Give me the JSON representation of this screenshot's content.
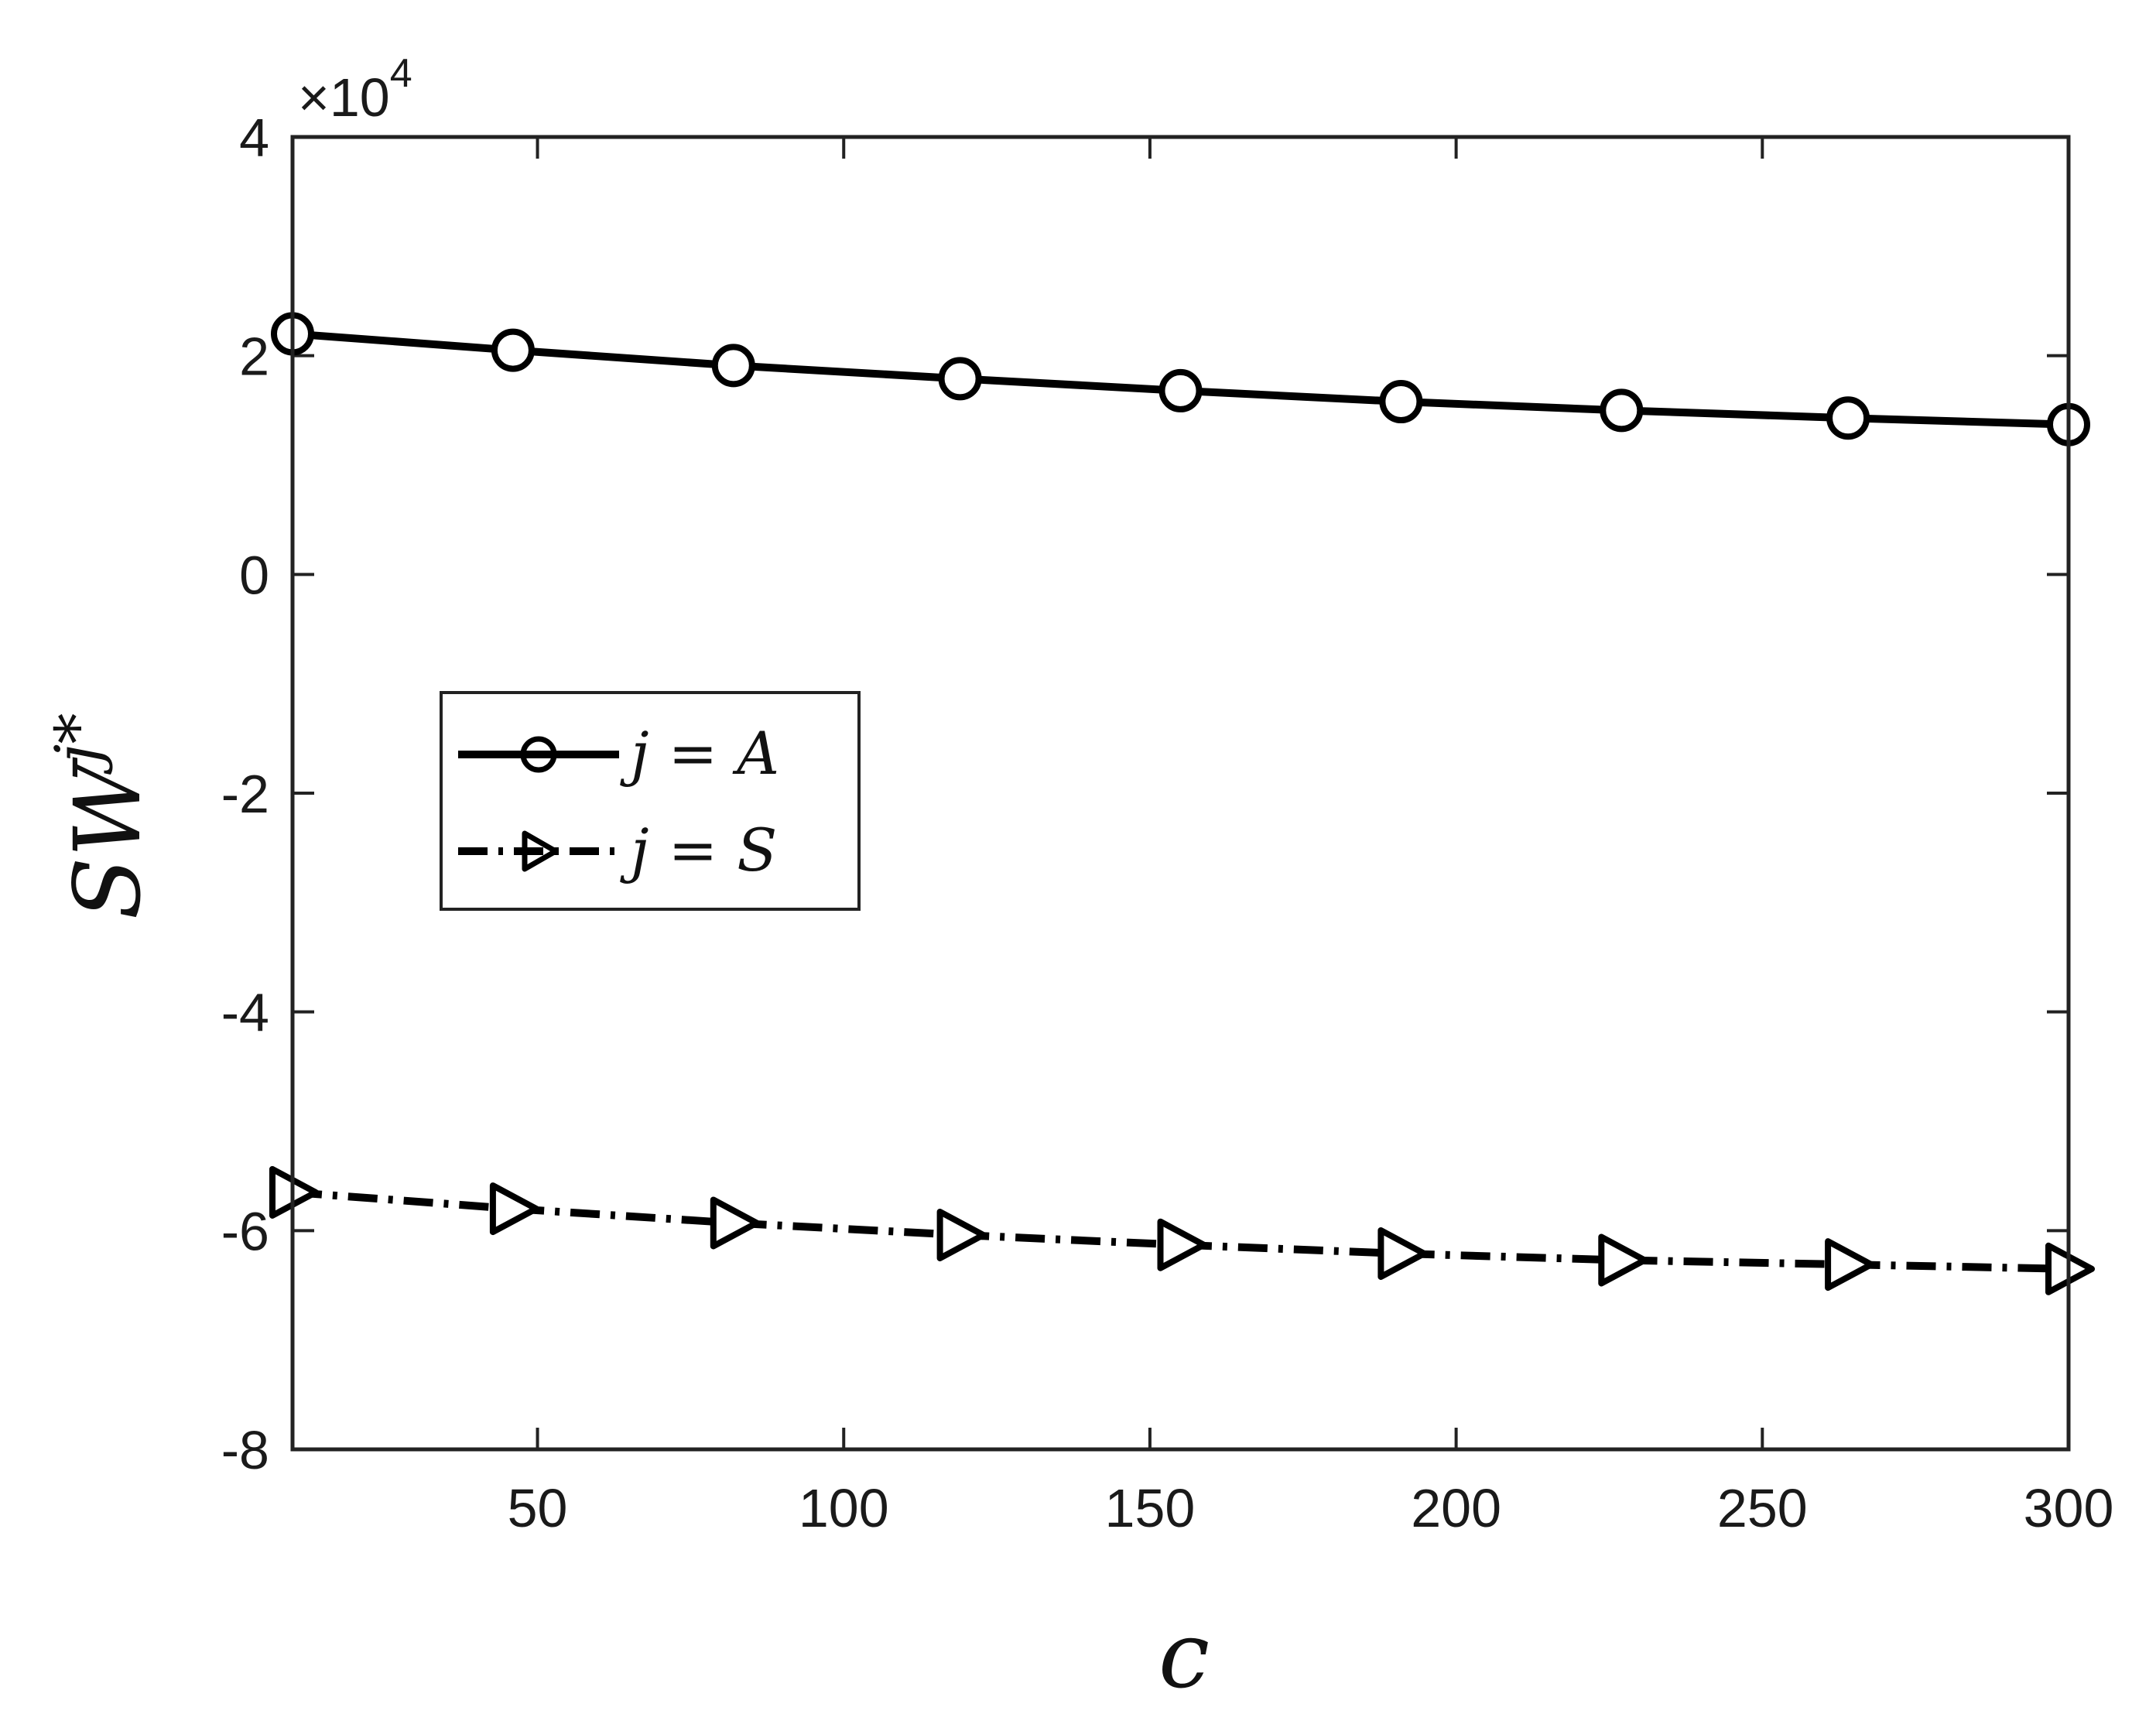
{
  "chart_data": {
    "type": "line",
    "xlabel": "c",
    "ylabel": "SW",
    "ylabel_superscript": "j*",
    "y_exponent_label": "×10",
    "y_exponent_power": "4",
    "xlim": [
      10,
      300
    ],
    "ylim": [
      -80000,
      40000
    ],
    "xticks": [
      50,
      100,
      150,
      200,
      250,
      300
    ],
    "xtick_labels": [
      "50",
      "100",
      "150",
      "200",
      "250",
      "300"
    ],
    "yticks": [
      -80000,
      -60000,
      -40000,
      -20000,
      0,
      20000,
      40000
    ],
    "ytick_labels": [
      "-8",
      "-6",
      "-4",
      "-2",
      "0",
      "2",
      "4"
    ],
    "grid": false,
    "legend_position": "center-left",
    "x": [
      10,
      46,
      82,
      119,
      155,
      191,
      227,
      264,
      300
    ],
    "series": [
      {
        "name": "j = A",
        "line_style": "solid",
        "marker": "circle",
        "color": "#000000",
        "values": [
          22000,
          20500,
          19100,
          17900,
          16800,
          15800,
          15000,
          14300,
          13700
        ]
      },
      {
        "name": "j = S",
        "line_style": "dash-dot",
        "marker": "triangle-right",
        "color": "#000000",
        "values": [
          -56500,
          -58000,
          -59300,
          -60400,
          -61300,
          -62100,
          -62700,
          -63100,
          -63500
        ]
      }
    ],
    "legend": [
      {
        "label_lhs": "j",
        "label_eq": "=",
        "label_rhs": "A"
      },
      {
        "label_lhs": "j",
        "label_eq": "=",
        "label_rhs": "S"
      }
    ]
  }
}
